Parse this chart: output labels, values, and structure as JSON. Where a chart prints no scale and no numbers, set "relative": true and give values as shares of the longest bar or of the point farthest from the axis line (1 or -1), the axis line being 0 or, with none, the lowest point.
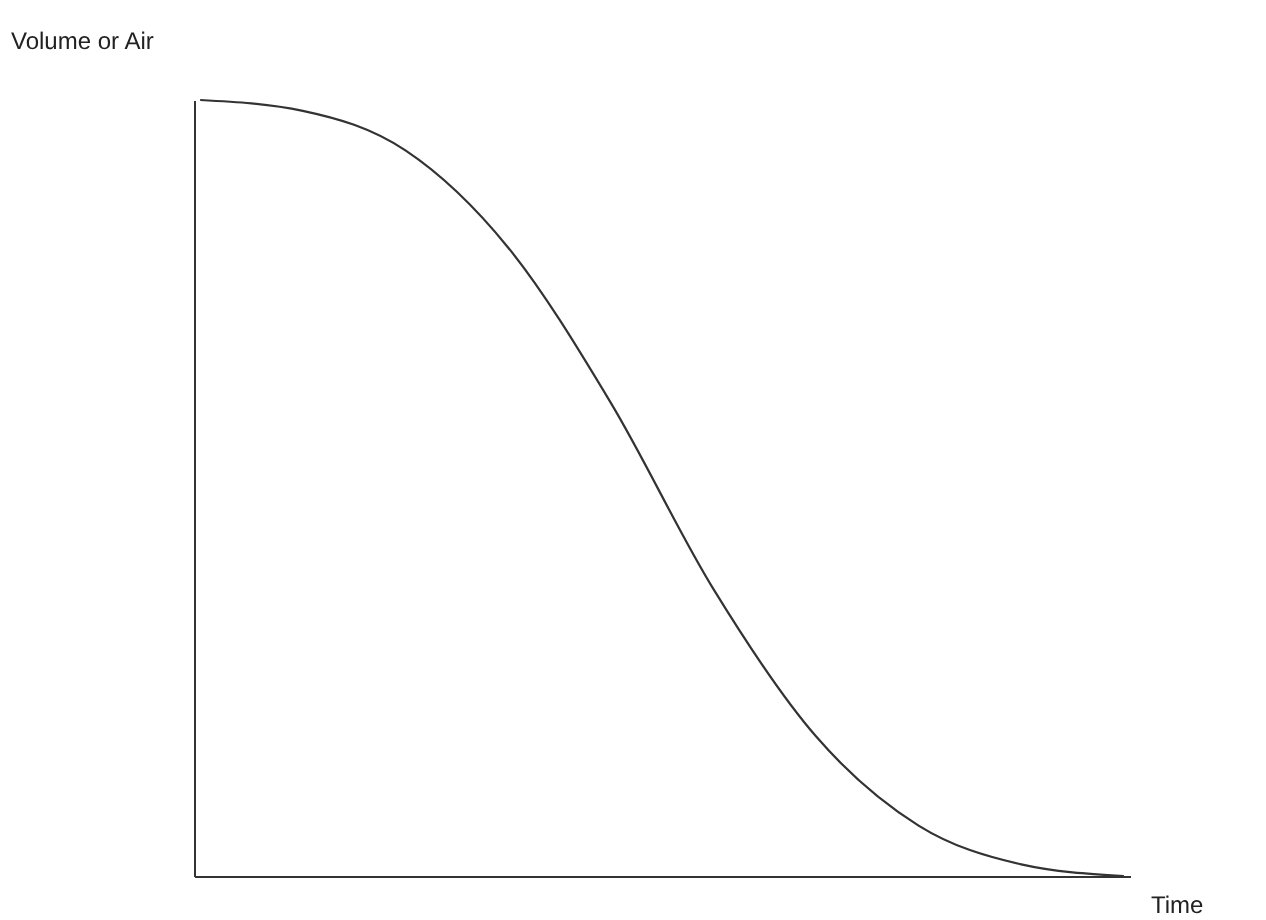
{
  "chart_data": {
    "type": "line",
    "xlabel": "Time",
    "ylabel": "Volume or Air",
    "relative": true,
    "categories": [
      null,
      null,
      null,
      null,
      null,
      null,
      null,
      null,
      null,
      null
    ],
    "series": [
      {
        "color": "#333333",
        "values": [
          1,
          0.986,
          0.935,
          0.81,
          0.61,
          0.37,
          0.18,
          0.065,
          0.015,
          0
        ]
      }
    ]
  }
}
